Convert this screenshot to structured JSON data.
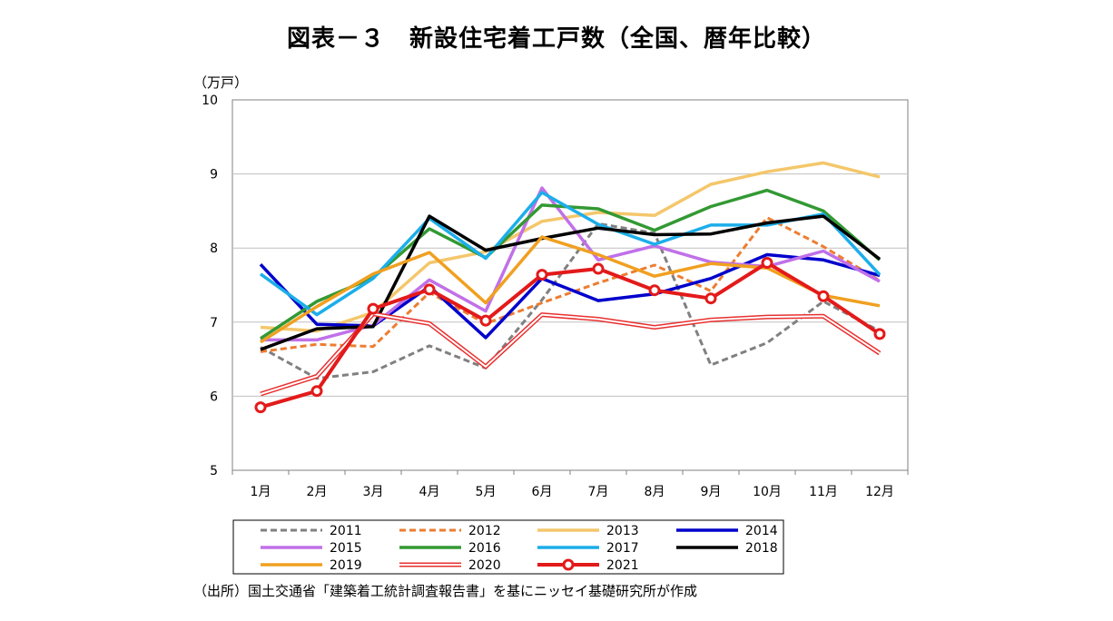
{
  "title": "図表－３　新設住宅着工戸数（全国、暦年比較）",
  "unit_label": "（万戸）",
  "source": "（出所）国土交通省「建築着工統計調査報告書」を基にニッセイ基礎研究所が作成",
  "chart_data": {
    "type": "line",
    "categories": [
      "1月",
      "2月",
      "3月",
      "4月",
      "5月",
      "6月",
      "7月",
      "8月",
      "9月",
      "10月",
      "11月",
      "12月"
    ],
    "ylim": [
      5,
      10
    ],
    "yticks": [
      "5",
      "6",
      "7",
      "8",
      "9",
      "10"
    ],
    "ylabel": "（万戸）",
    "grid": true,
    "legend_position": "bottom",
    "series": [
      {
        "name": "2011",
        "color": "#808080",
        "style": "dashed",
        "values": [
          6.66,
          6.24,
          6.33,
          6.68,
          6.38,
          7.3,
          8.33,
          8.2,
          6.42,
          6.72,
          7.28,
          6.88
        ]
      },
      {
        "name": "2012",
        "color": "#ED7D31",
        "style": "dashed",
        "values": [
          6.6,
          6.7,
          6.67,
          7.4,
          6.98,
          7.26,
          7.53,
          7.77,
          7.42,
          8.41,
          8.02,
          7.56
        ]
      },
      {
        "name": "2013",
        "color": "#F4C76B",
        "style": "solid",
        "values": [
          6.93,
          6.88,
          7.13,
          7.8,
          7.95,
          8.36,
          8.48,
          8.44,
          8.86,
          9.03,
          9.15,
          8.96
        ]
      },
      {
        "name": "2014",
        "color": "#0000CC",
        "style": "solid",
        "values": [
          7.78,
          6.97,
          6.95,
          7.48,
          6.79,
          7.59,
          7.29,
          7.38,
          7.59,
          7.91,
          7.84,
          7.63
        ]
      },
      {
        "name": "2015",
        "color": "#C070E8",
        "style": "solid",
        "values": [
          6.76,
          6.76,
          6.96,
          7.57,
          7.15,
          8.81,
          7.84,
          8.03,
          7.81,
          7.75,
          7.96,
          7.55
        ]
      },
      {
        "name": "2016",
        "color": "#339933",
        "style": "solid",
        "values": [
          6.78,
          7.28,
          7.6,
          8.26,
          7.87,
          8.58,
          8.53,
          8.24,
          8.56,
          8.78,
          8.5,
          7.84
        ]
      },
      {
        "name": "2017",
        "color": "#1CAEEA",
        "style": "solid",
        "values": [
          7.65,
          7.1,
          7.59,
          8.4,
          7.86,
          8.75,
          8.32,
          8.05,
          8.31,
          8.31,
          8.46,
          7.64
        ]
      },
      {
        "name": "2018",
        "color": "#000000",
        "style": "solid",
        "values": [
          6.63,
          6.91,
          6.94,
          8.43,
          7.97,
          8.13,
          8.27,
          8.18,
          8.19,
          8.34,
          8.43,
          7.85
        ]
      },
      {
        "name": "2019",
        "color": "#F0A020",
        "style": "solid",
        "values": [
          6.73,
          7.21,
          7.65,
          7.94,
          7.26,
          8.15,
          7.91,
          7.62,
          7.79,
          7.73,
          7.36,
          7.22
        ]
      },
      {
        "name": "2020",
        "color": "#E83030",
        "style": "double",
        "values": [
          6.03,
          6.27,
          7.11,
          6.98,
          6.4,
          7.1,
          7.04,
          6.93,
          7.03,
          7.07,
          7.08,
          6.58
        ]
      },
      {
        "name": "2021",
        "color": "#E31A1A",
        "style": "marker",
        "values": [
          5.85,
          6.07,
          7.18,
          7.44,
          7.02,
          7.64,
          7.72,
          7.43,
          7.32,
          7.8,
          7.35,
          6.84
        ]
      }
    ]
  }
}
